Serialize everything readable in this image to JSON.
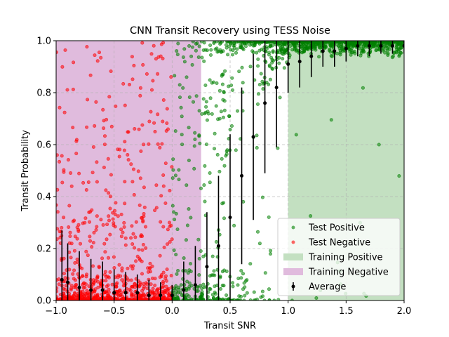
{
  "chart_data": {
    "type": "scatter",
    "title": "CNN Transit Recovery using TESS Noise",
    "xlabel": "Transit SNR",
    "ylabel": "Transit Probability",
    "xlim": [
      -1.0,
      2.0
    ],
    "ylim": [
      0.0,
      1.0
    ],
    "x_ticks": [
      "−1.0",
      "−0.5",
      "0.0",
      "0.5",
      "1.0",
      "1.5",
      "2.0"
    ],
    "y_ticks": [
      "0.0",
      "0.2",
      "0.4",
      "0.6",
      "0.8",
      "1.0"
    ],
    "grid": true,
    "legend_position": "lower-right",
    "colors": {
      "test_positive": "#008000",
      "test_negative": "#ff0000",
      "training_positive": "#c3e0c1",
      "training_negative": "#e0bbdd",
      "average": "#000000"
    },
    "regions": [
      {
        "name": "Training Positive",
        "x_range": [
          1.0,
          2.0
        ]
      },
      {
        "name": "Training Negative",
        "x_range": [
          -1.0,
          0.25
        ]
      }
    ],
    "legend": [
      {
        "key": "test_positive",
        "label": "Test Positive"
      },
      {
        "key": "test_negative",
        "label": "Test Negative"
      },
      {
        "key": "training_positive",
        "label": "Training Positive"
      },
      {
        "key": "training_negative",
        "label": "Training Negative"
      },
      {
        "key": "average",
        "label": "Average"
      }
    ],
    "average": {
      "x": [
        -0.95,
        -0.9,
        -0.8,
        -0.7,
        -0.6,
        -0.5,
        -0.4,
        -0.3,
        -0.2,
        -0.1,
        0.0,
        0.1,
        0.2,
        0.3,
        0.4,
        0.5,
        0.6,
        0.7,
        0.8,
        0.9,
        1.0,
        1.1,
        1.2,
        1.3,
        1.4,
        1.5,
        1.6,
        1.7,
        1.8,
        1.9,
        2.0
      ],
      "y": [
        0.08,
        0.07,
        0.05,
        0.04,
        0.04,
        0.03,
        0.03,
        0.03,
        0.02,
        0.02,
        0.02,
        0.04,
        0.06,
        0.13,
        0.21,
        0.32,
        0.48,
        0.63,
        0.76,
        0.82,
        0.91,
        0.92,
        0.94,
        0.96,
        0.96,
        0.97,
        0.98,
        0.98,
        0.98,
        0.98,
        0.98
      ],
      "err": [
        0.19,
        0.15,
        0.14,
        0.12,
        0.11,
        0.09,
        0.08,
        0.07,
        0.06,
        0.05,
        0.04,
        0.11,
        0.15,
        0.21,
        0.27,
        0.32,
        0.34,
        0.32,
        0.27,
        0.23,
        0.11,
        0.1,
        0.08,
        0.06,
        0.06,
        0.05,
        0.04,
        0.04,
        0.03,
        0.03,
        0.03
      ]
    }
  }
}
